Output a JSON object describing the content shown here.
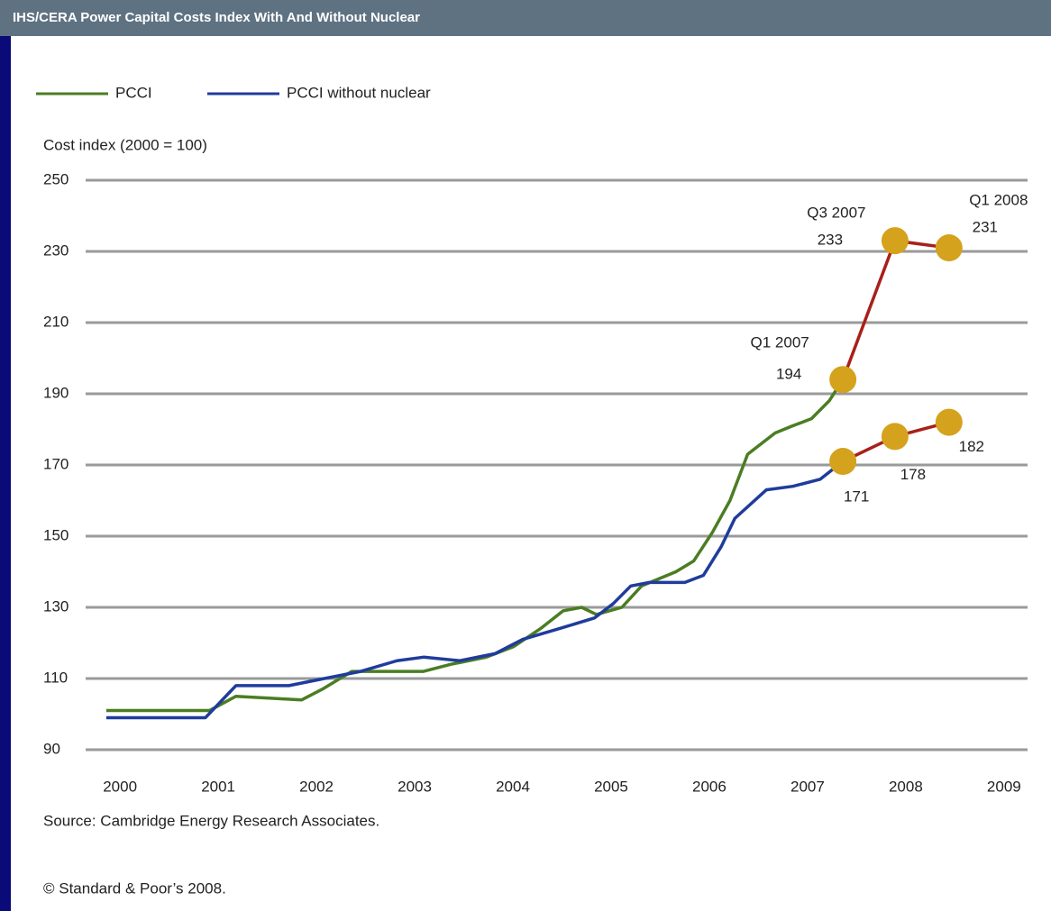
{
  "chart_data": {
    "type": "line",
    "title": "IHS/CERA Power Capital Costs Index With And Without Nuclear",
    "y_label": "Cost index (2000 = 100)",
    "source": "Source: Cambridge Energy Research Associates.",
    "copyright": "© Standard & Poor’s 2008.",
    "xlim": [
      1999.65,
      2009.24
    ],
    "xticks": [
      2000,
      2001,
      2002,
      2003,
      2004,
      2005,
      2006,
      2007,
      2008,
      2009
    ],
    "ylim": [
      90,
      250
    ],
    "yticks": [
      90,
      110,
      130,
      150,
      170,
      190,
      210,
      230,
      250
    ],
    "grid": true,
    "legend": "top-left",
    "series": [
      {
        "name": "PCCI",
        "color": "#4b7d23",
        "x": [
          1999.86,
          2000.91,
          2001.18,
          2001.85,
          2002.06,
          2002.36,
          2003.09,
          2003.37,
          2003.73,
          2004.01,
          2004.28,
          2004.51,
          2004.7,
          2004.85,
          2005.11,
          2005.31,
          2005.66,
          2005.84,
          2006.03,
          2006.21,
          2006.39,
          2006.67,
          2006.85,
          2007.04,
          2007.22,
          2007.36
        ],
        "values": [
          101,
          101,
          105,
          104,
          107,
          112,
          112,
          114,
          116,
          119,
          124,
          129,
          130,
          128,
          130,
          136,
          140,
          143,
          151,
          160,
          173,
          179,
          181,
          183,
          188,
          194
        ]
      },
      {
        "name": "PCCI without nuclear",
        "color": "#1f3c9c",
        "x": [
          1999.86,
          2000.87,
          2001.18,
          2001.72,
          2002.08,
          2002.45,
          2002.82,
          2003.09,
          2003.46,
          2003.82,
          2004.1,
          2004.47,
          2004.83,
          2005.02,
          2005.2,
          2005.39,
          2005.75,
          2005.94,
          2006.12,
          2006.26,
          2006.58,
          2006.85,
          2007.13,
          2007.36
        ],
        "values": [
          99,
          99,
          108,
          108,
          110,
          112,
          115,
          116,
          115,
          117,
          121,
          124,
          127,
          131,
          136,
          137,
          137,
          139,
          147,
          155,
          163,
          164,
          166,
          171
        ]
      }
    ],
    "highlights": [
      {
        "color": "#a8201a",
        "marker_color": "#d4a21c",
        "x": [
          2007.36,
          2007.89,
          2008.44
        ],
        "values": [
          194,
          233,
          231
        ],
        "period_labels": [
          "Q1 2007",
          "Q3 2007",
          "Q1 2008"
        ]
      },
      {
        "color": "#a8201a",
        "marker_color": "#d4a21c",
        "x": [
          2007.36,
          2007.89,
          2008.44
        ],
        "values": [
          171,
          178,
          182
        ]
      }
    ]
  }
}
